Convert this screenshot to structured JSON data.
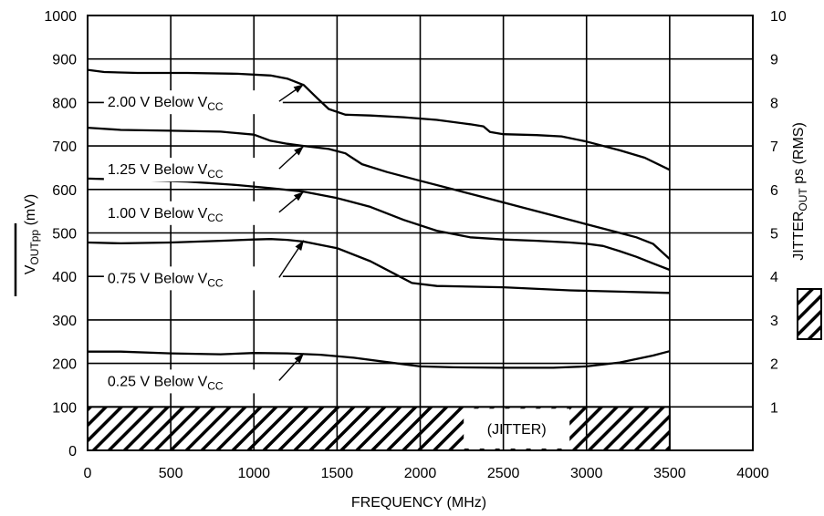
{
  "chart_data": {
    "type": "line",
    "xlabel": "FREQUENCY (MHz)",
    "ylabel_main": "V",
    "ylabel_sub": "OUTpp",
    "ylabel_unit": " (mV)",
    "y2label_main": "JITTER",
    "y2label_sub": "OUT",
    "y2label_unit": " ps (RMS)",
    "xlim": [
      0,
      4000
    ],
    "ylim": [
      0,
      1000
    ],
    "y2lim": [
      0,
      10
    ],
    "grid": true,
    "x_ticks": [
      "0",
      "500",
      "1000",
      "1500",
      "2000",
      "2500",
      "3000",
      "3500",
      "4000"
    ],
    "y_ticks": [
      "0",
      "100",
      "200",
      "300",
      "400",
      "500",
      "600",
      "700",
      "800",
      "900",
      "1000"
    ],
    "y2_ticks": [
      "1",
      "2",
      "3",
      "4",
      "5",
      "6",
      "7",
      "8",
      "9",
      "10"
    ],
    "jitter": {
      "label": "(JITTER)",
      "x_range": [
        0,
        3500
      ],
      "value_ps_rms": 1.0
    },
    "series": [
      {
        "name": "2.00 V Below V",
        "name_sub": "CC",
        "points": [
          [
            0,
            875
          ],
          [
            100,
            870
          ],
          [
            300,
            868
          ],
          [
            600,
            868
          ],
          [
            900,
            866
          ],
          [
            1100,
            862
          ],
          [
            1200,
            855
          ],
          [
            1300,
            840
          ],
          [
            1380,
            810
          ],
          [
            1450,
            785
          ],
          [
            1550,
            772
          ],
          [
            1700,
            770
          ],
          [
            1900,
            766
          ],
          [
            2100,
            760
          ],
          [
            2300,
            750
          ],
          [
            2380,
            745
          ],
          [
            2420,
            732
          ],
          [
            2500,
            727
          ],
          [
            2700,
            725
          ],
          [
            2850,
            722
          ],
          [
            3000,
            710
          ],
          [
            3200,
            690
          ],
          [
            3350,
            673
          ],
          [
            3500,
            645
          ]
        ]
      },
      {
        "name": "1.25 V Below V",
        "name_sub": "CC",
        "points": [
          [
            0,
            742
          ],
          [
            200,
            737
          ],
          [
            500,
            735
          ],
          [
            800,
            733
          ],
          [
            1000,
            726
          ],
          [
            1100,
            712
          ],
          [
            1200,
            705
          ],
          [
            1300,
            700
          ],
          [
            1450,
            693
          ],
          [
            1550,
            683
          ],
          [
            1650,
            658
          ],
          [
            1800,
            640
          ],
          [
            2000,
            620
          ],
          [
            2200,
            600
          ],
          [
            2400,
            580
          ],
          [
            2600,
            560
          ],
          [
            2800,
            540
          ],
          [
            3000,
            520
          ],
          [
            3200,
            500
          ],
          [
            3300,
            490
          ],
          [
            3400,
            475
          ],
          [
            3500,
            440
          ]
        ]
      },
      {
        "name": "1.00 V Below V",
        "name_sub": "CC",
        "points": [
          [
            0,
            625
          ],
          [
            300,
            622
          ],
          [
            600,
            618
          ],
          [
            900,
            610
          ],
          [
            1100,
            603
          ],
          [
            1300,
            595
          ],
          [
            1500,
            580
          ],
          [
            1700,
            560
          ],
          [
            1900,
            530
          ],
          [
            2100,
            505
          ],
          [
            2300,
            490
          ],
          [
            2500,
            485
          ],
          [
            2700,
            482
          ],
          [
            2900,
            478
          ],
          [
            3000,
            475
          ],
          [
            3100,
            470
          ],
          [
            3200,
            458
          ],
          [
            3300,
            445
          ],
          [
            3400,
            430
          ],
          [
            3500,
            415
          ]
        ]
      },
      {
        "name": "0.75 V Below V",
        "name_sub": "CC",
        "points": [
          [
            0,
            478
          ],
          [
            200,
            476
          ],
          [
            500,
            478
          ],
          [
            800,
            482
          ],
          [
            1000,
            485
          ],
          [
            1100,
            486
          ],
          [
            1200,
            484
          ],
          [
            1300,
            480
          ],
          [
            1500,
            465
          ],
          [
            1700,
            435
          ],
          [
            1850,
            405
          ],
          [
            1950,
            385
          ],
          [
            2100,
            378
          ],
          [
            2500,
            375
          ],
          [
            2900,
            368
          ],
          [
            3200,
            365
          ],
          [
            3500,
            362
          ]
        ]
      },
      {
        "name": "0.25 V Below V",
        "name_sub": "CC",
        "points": [
          [
            0,
            227
          ],
          [
            200,
            227
          ],
          [
            500,
            223
          ],
          [
            800,
            221
          ],
          [
            1000,
            224
          ],
          [
            1200,
            223
          ],
          [
            1400,
            220
          ],
          [
            1600,
            213
          ],
          [
            1800,
            203
          ],
          [
            2000,
            193
          ],
          [
            2200,
            191
          ],
          [
            2500,
            190
          ],
          [
            2800,
            190
          ],
          [
            3000,
            193
          ],
          [
            3200,
            202
          ],
          [
            3400,
            218
          ],
          [
            3500,
            228
          ]
        ]
      }
    ],
    "annotations": [
      {
        "series": 0,
        "text_at": [
          120,
          790
        ],
        "arrow_to": [
          1300,
          842
        ]
      },
      {
        "series": 1,
        "text_at": [
          120,
          635
        ],
        "arrow_to": [
          1300,
          700
        ]
      },
      {
        "series": 2,
        "text_at": [
          120,
          535
        ],
        "arrow_to": [
          1300,
          595
        ]
      },
      {
        "series": 3,
        "text_at": [
          120,
          385
        ],
        "arrow_to": [
          1300,
          483
        ]
      },
      {
        "series": 4,
        "text_at": [
          120,
          148
        ],
        "arrow_to": [
          1300,
          223
        ]
      }
    ]
  }
}
